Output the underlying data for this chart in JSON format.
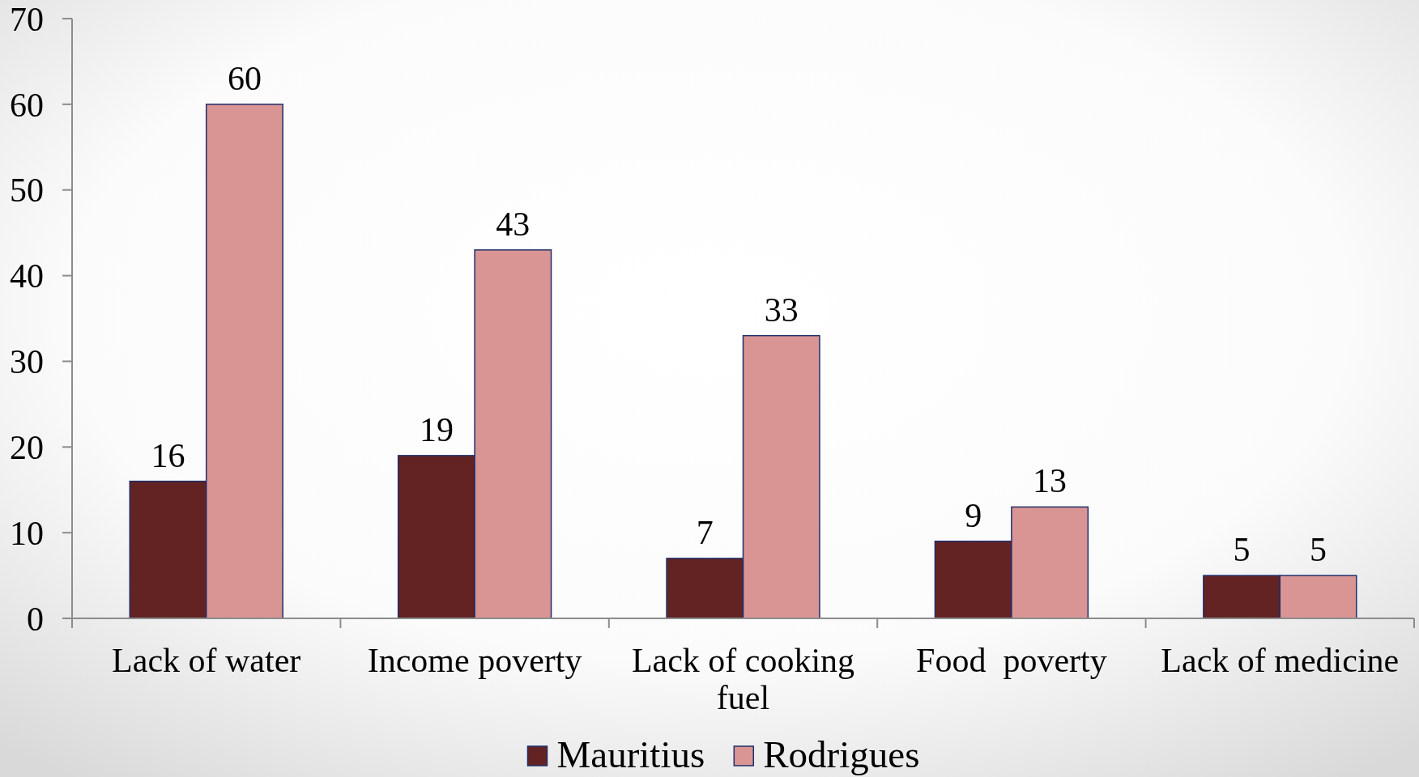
{
  "chart_data": {
    "type": "bar",
    "categories": [
      "Lack of water",
      "Income poverty",
      "Lack of cooking fuel",
      "Food  poverty",
      "Lack of medicine"
    ],
    "series": [
      {
        "name": "Mauritius",
        "color": "#632323",
        "values": [
          16,
          19,
          7,
          9,
          5
        ]
      },
      {
        "name": "Rodrigues",
        "color": "#d99594",
        "values": [
          60,
          43,
          33,
          13,
          5
        ]
      }
    ],
    "ylim": [
      0,
      70
    ],
    "yticks": [
      0,
      10,
      20,
      30,
      40,
      50,
      60,
      70
    ],
    "data_labels": true,
    "legend": "bottom"
  }
}
